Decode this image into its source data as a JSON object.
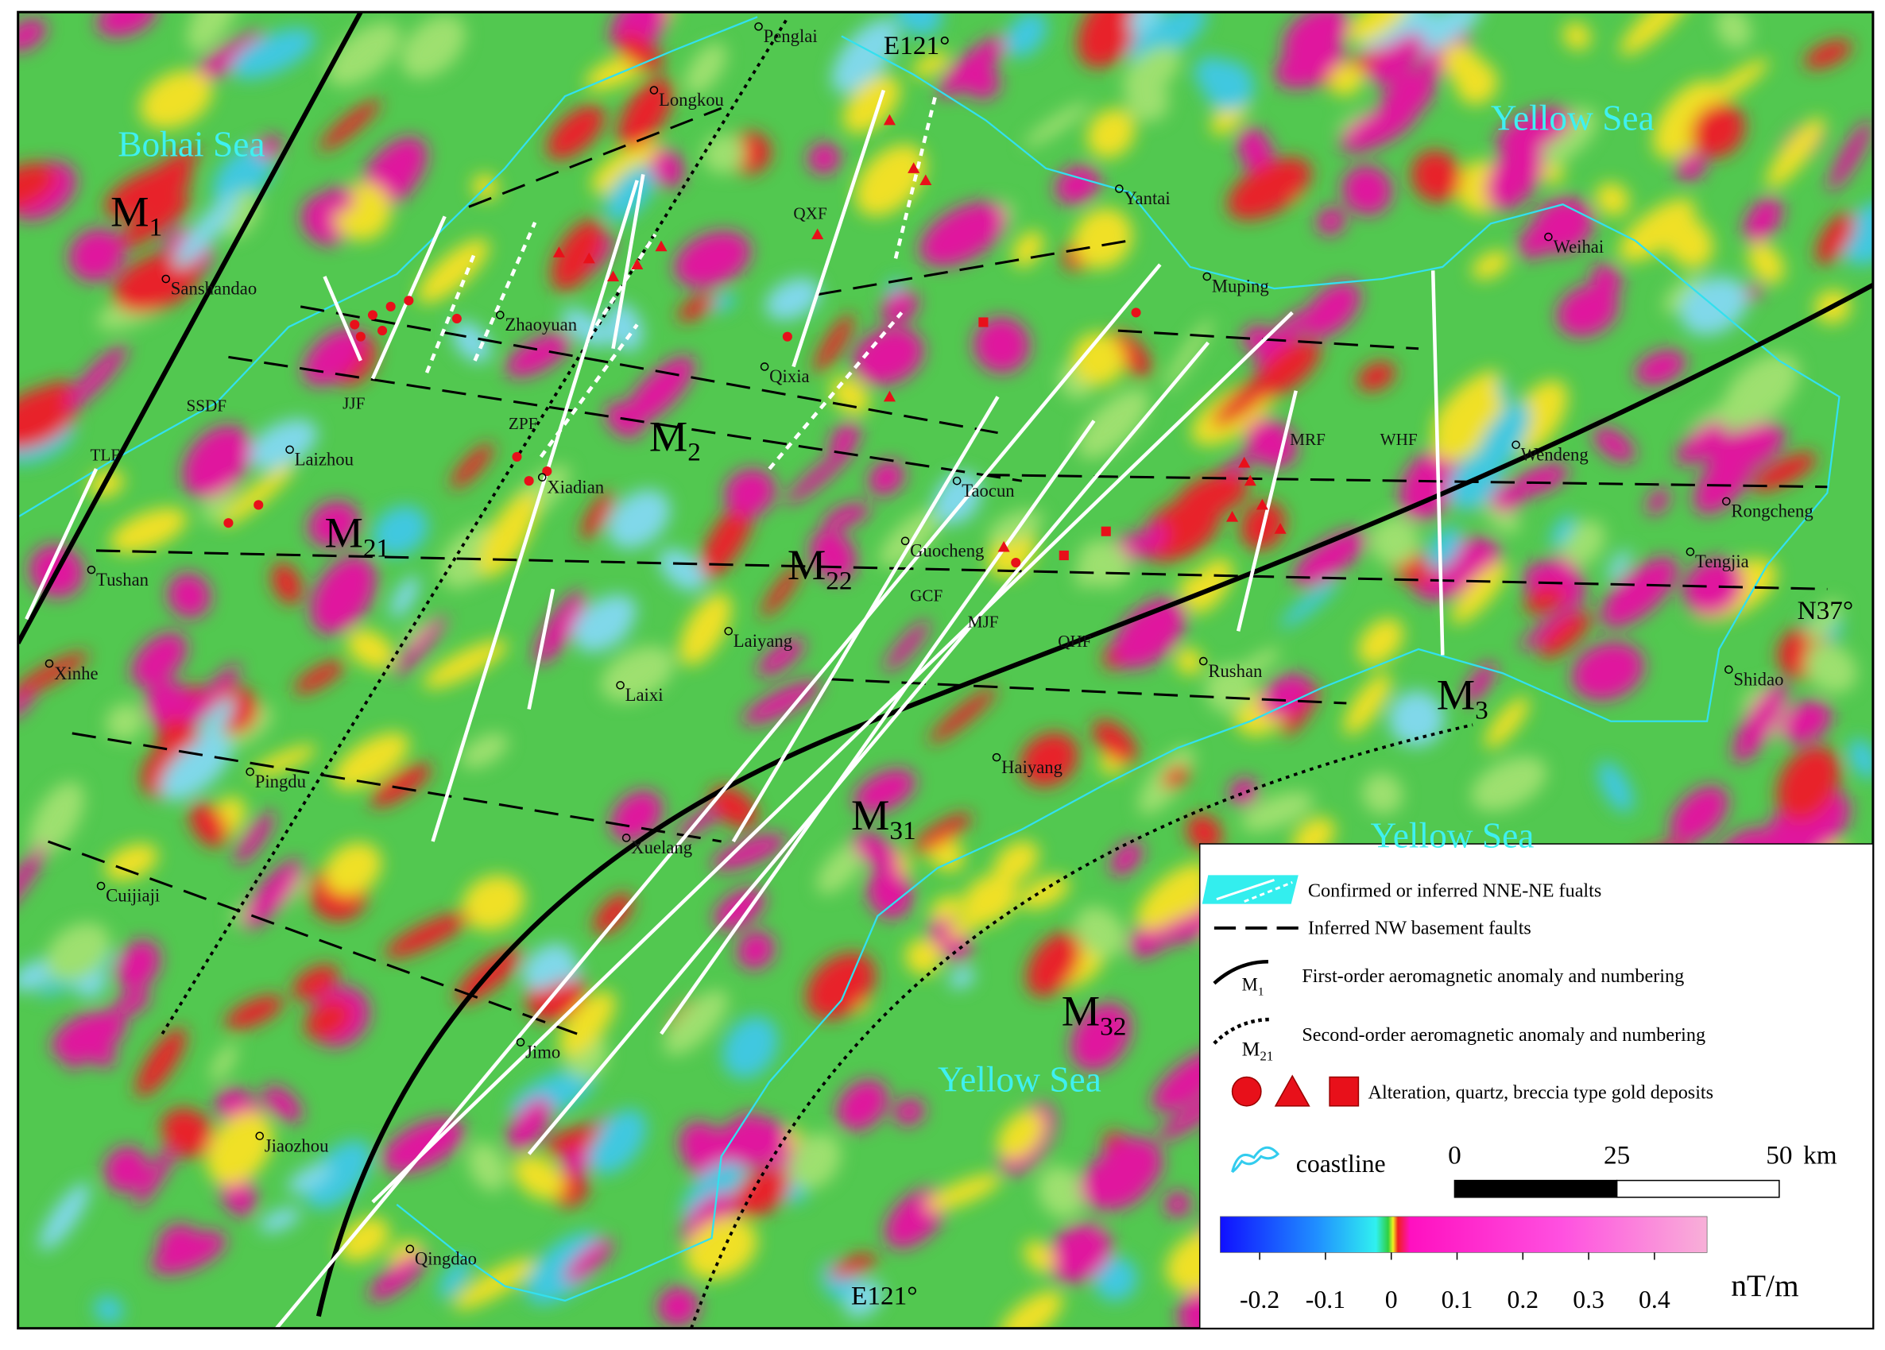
{
  "seas": [
    "Bohai Sea",
    "Yellow Sea",
    "Yellow Sea",
    "Yellow Sea"
  ],
  "places": [
    "Penglai",
    "Longkou",
    "Yantai",
    "Weihai",
    "Muping",
    "Sanshandao",
    "Zhaoyuan",
    "Qixia",
    "Laizhou",
    "Xiadian",
    "Taocun",
    "Wendeng",
    "Rongcheng",
    "Tengjia",
    "Guocheng",
    "Tushan",
    "Laiyang",
    "Rushan",
    "Shidao",
    "Xinhe",
    "Laixi",
    "Haiyang",
    "Pingdu",
    "Xuelang",
    "Cuijiaji",
    "Jimo",
    "Jiaozhou",
    "Qingdao"
  ],
  "faults": [
    "TLF",
    "SSDF",
    "JJF",
    "ZPF",
    "QXF",
    "MRF",
    "WHF",
    "GCF",
    "MJF",
    "QHF"
  ],
  "anomalies": [
    {
      "main": "M",
      "sub": "1"
    },
    {
      "main": "M",
      "sub": "21"
    },
    {
      "main": "M",
      "sub": "2"
    },
    {
      "main": "M",
      "sub": "22"
    },
    {
      "main": "M",
      "sub": "31"
    },
    {
      "main": "M",
      "sub": "3"
    },
    {
      "main": "M",
      "sub": "32"
    }
  ],
  "coordinates": [
    "E121°",
    "E121°",
    "N37°"
  ],
  "legend": {
    "items": [
      "Confirmed or inferred NNE-NE fualts",
      "Inferred NW basement faults",
      "First-order aeromagnetic anomaly and numbering",
      "Second-order aeromagnetic anomaly and numbering",
      "Alteration, quartz, breccia type gold deposits",
      "coastline"
    ],
    "first_order_symbol": {
      "main": "M",
      "sub": "1"
    },
    "second_order_symbol": {
      "main": "M",
      "sub": "21"
    }
  },
  "scale_bar": {
    "ticks": [
      0,
      25,
      50
    ],
    "unit": "km"
  },
  "colorbar": {
    "ticks": [
      -0.2,
      -0.1,
      0,
      0.1,
      0.2,
      0.3,
      0.4
    ],
    "lim": [
      -0.26,
      0.48
    ],
    "unit": "nT/m"
  }
}
